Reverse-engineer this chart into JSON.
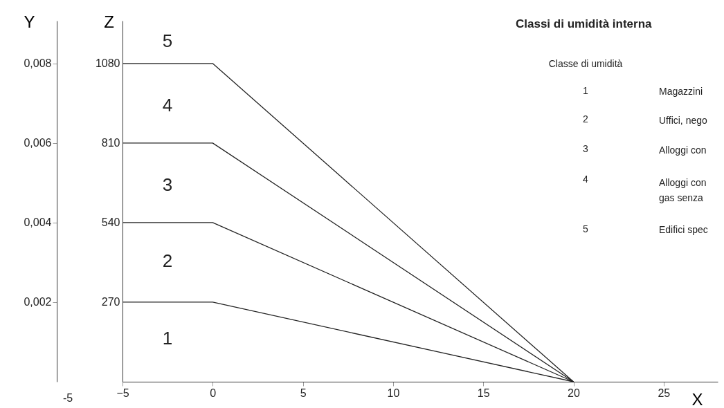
{
  "chart_data": {
    "type": "line",
    "xlabel": "X",
    "ylabel": "Z",
    "y2label": "Y",
    "xlim": [
      -5,
      28
    ],
    "xticks": [
      -5,
      0,
      5,
      10,
      15,
      20,
      25
    ],
    "ylim": [
      0,
      1225
    ],
    "yticks": [
      270,
      540,
      810,
      1080
    ],
    "y2lim": [
      0,
      0.009074
    ],
    "y2ticks": [
      {
        "value": 0.002,
        "label": "0,002"
      },
      {
        "value": 0.004,
        "label": "0,004"
      },
      {
        "value": 0.006,
        "label": "0,006"
      },
      {
        "value": 0.008,
        "label": "0,008"
      }
    ],
    "x": [
      -5,
      0,
      20
    ],
    "series": [
      {
        "color": "#222222",
        "values": [
          270,
          270,
          0
        ]
      },
      {
        "color": "#222222",
        "values": [
          540,
          540,
          0
        ]
      },
      {
        "color": "#222222",
        "values": [
          810,
          810,
          0
        ]
      },
      {
        "color": "#222222",
        "values": [
          1080,
          1080,
          0
        ]
      }
    ],
    "grid": false,
    "legend": false,
    "marker": "none",
    "line_style": "solid",
    "annotations": [
      "1",
      "2",
      "3",
      "4",
      "5",
      "-5",
      "Classi di umidità interna",
      "Classe di umidità",
      "1",
      "Magazzini",
      "2",
      "Uffici, nego",
      "3",
      "Alloggi con",
      "4",
      "Alloggi con\ngas senza",
      "5",
      "Edifici spec"
    ]
  }
}
